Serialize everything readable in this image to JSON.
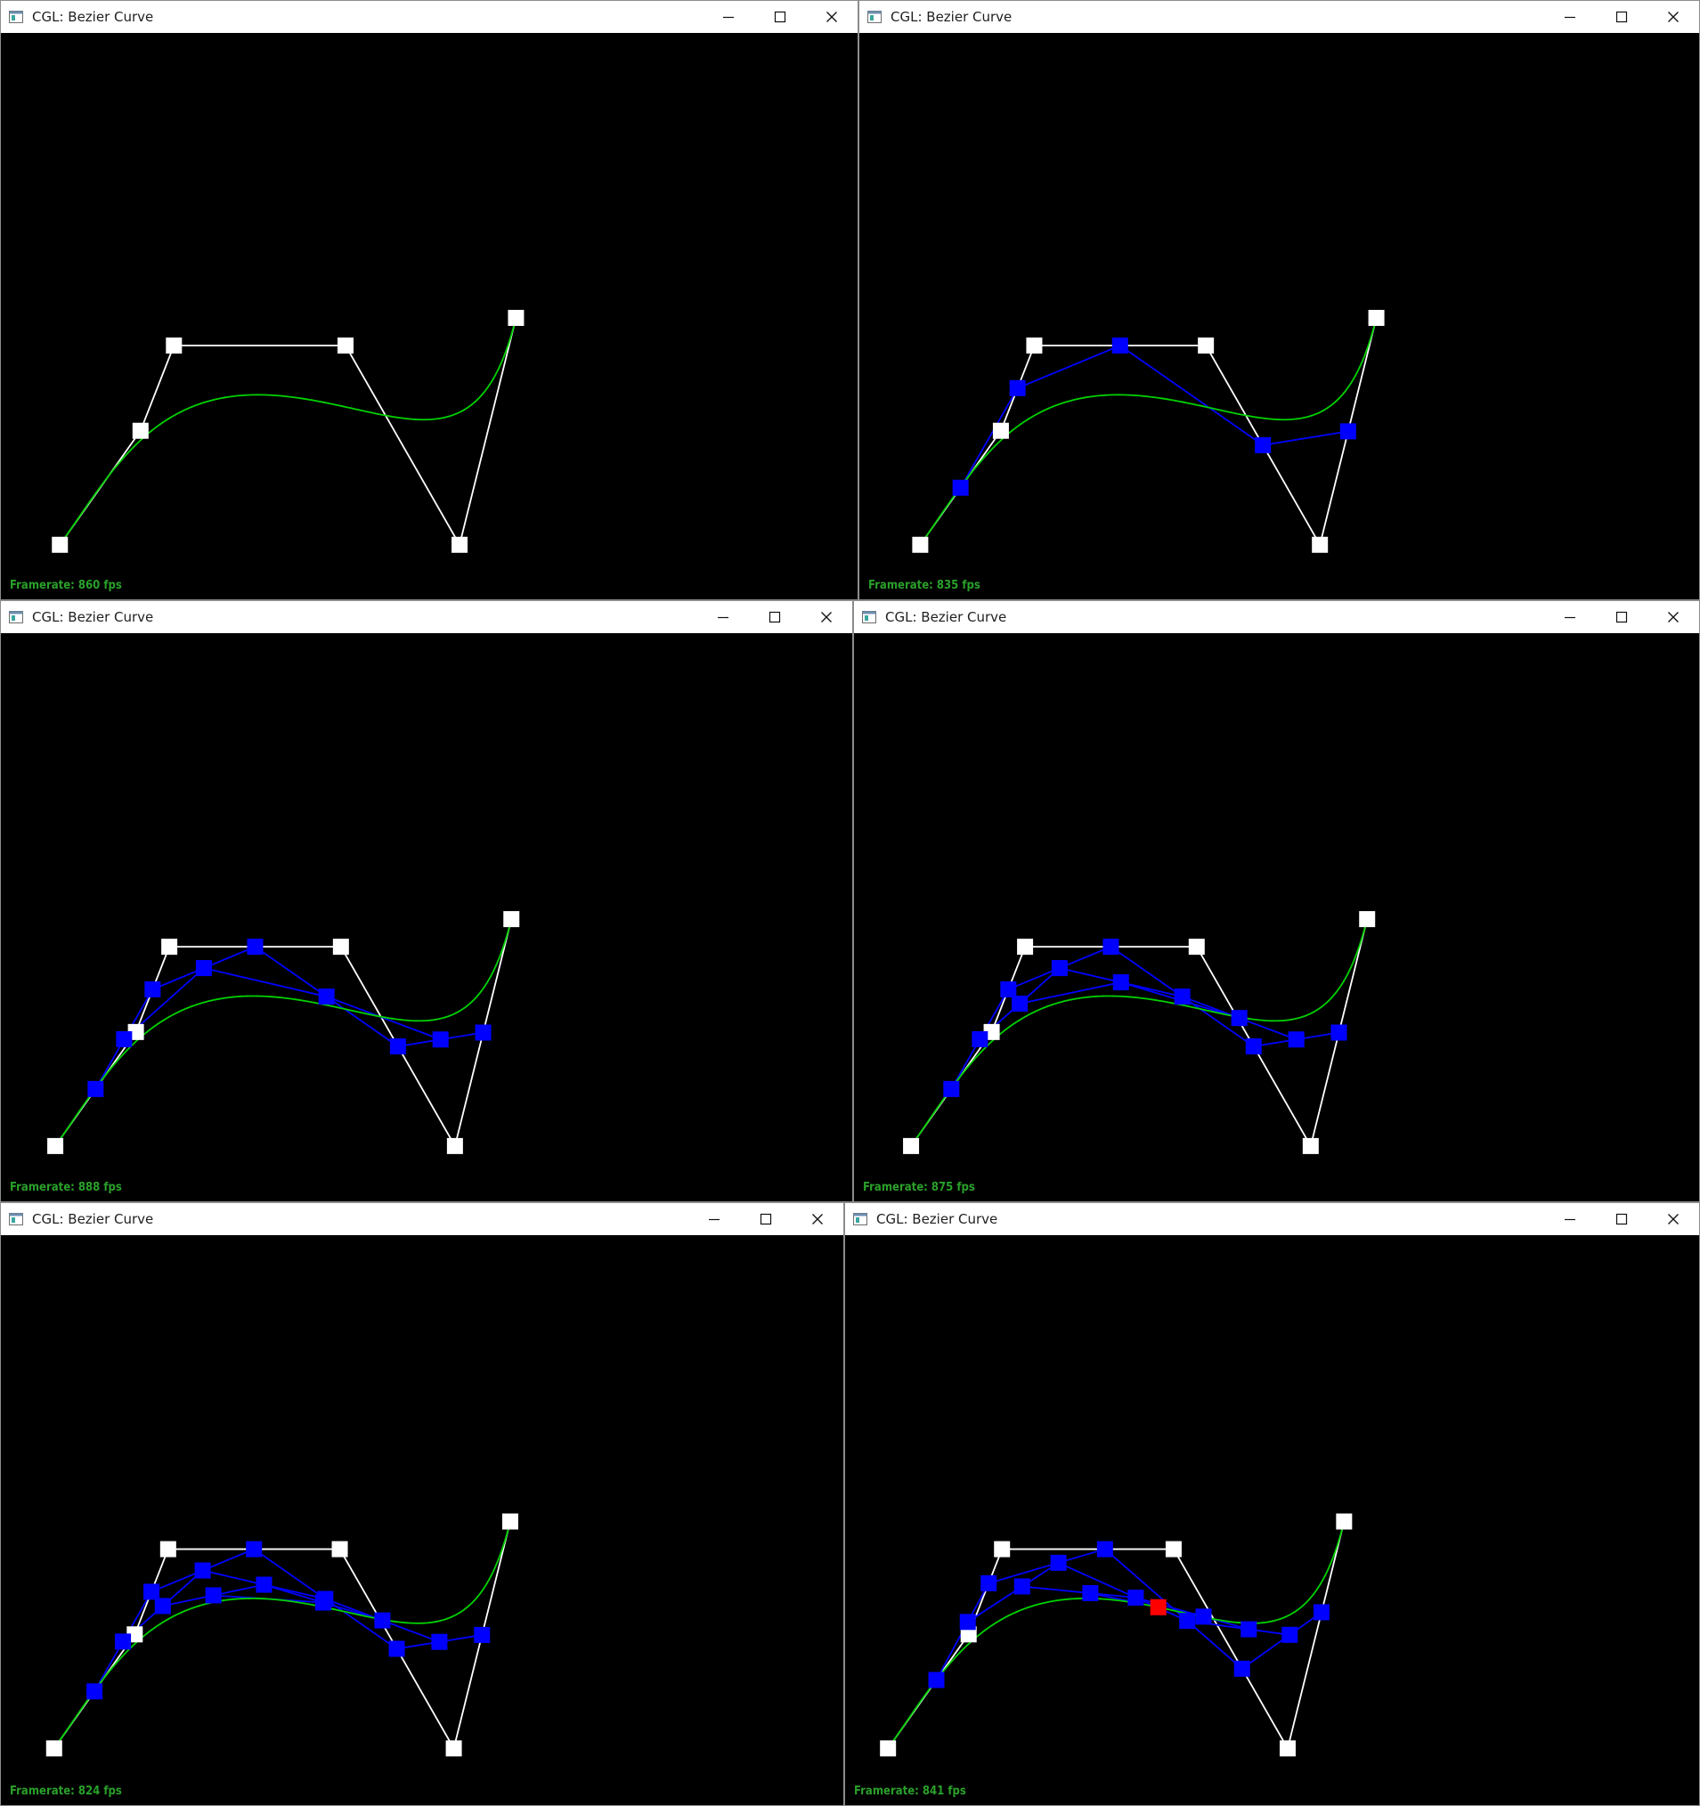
{
  "colors": {
    "curve": "#00d200",
    "control_polygon": "#ffffff",
    "control_point": "#ffffff",
    "intermediate": "#0000ff",
    "current_point": "#ff0000",
    "framerate_text": "#2aa02a"
  },
  "icons": {
    "app": "app-window-icon",
    "minimize": "minimize-icon",
    "maximize": "maximize-icon",
    "close": "close-icon"
  },
  "windows": [
    {
      "title": "CGL: Bezier Curve",
      "framerate": "Framerate: 860 fps"
    },
    {
      "title": "CGL: Bezier Curve",
      "framerate": "Framerate: 835 fps"
    },
    {
      "title": "CGL: Bezier Curve",
      "framerate": "Framerate: 888 fps"
    },
    {
      "title": "CGL: Bezier Curve",
      "framerate": "Framerate: 875 fps"
    },
    {
      "title": "CGL: Bezier Curve",
      "framerate": "Framerate: 824 fps"
    },
    {
      "title": "CGL: Bezier Curve",
      "framerate": "Framerate: 841 fps"
    }
  ]
}
